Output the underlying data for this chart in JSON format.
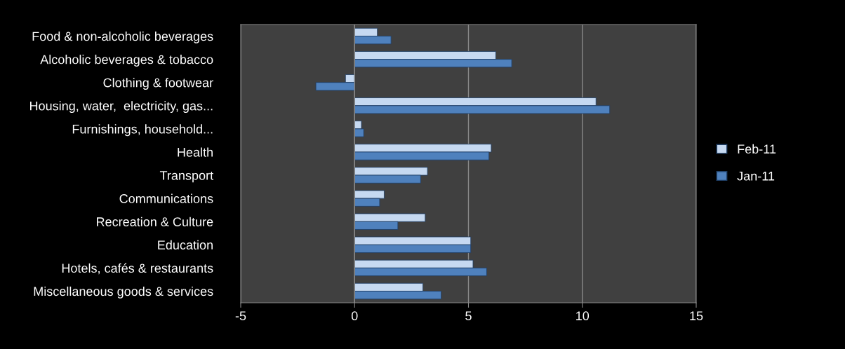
{
  "chart_data": {
    "type": "bar",
    "orientation": "horizontal",
    "categories": [
      "Food & non-alcoholic beverages",
      "Alcoholic beverages & tobacco",
      "Clothing & footwear",
      "Housing, water,  electricity, gas...",
      "Furnishings, household...",
      "Health",
      "Transport",
      "Communications",
      "Recreation & Culture",
      "Education",
      "Hotels, cafés & restaurants",
      "Miscellaneous goods & services"
    ],
    "series": [
      {
        "name": "Feb-11",
        "color": "#c6d9f1",
        "values": [
          1.0,
          6.2,
          -0.4,
          10.6,
          0.3,
          6.0,
          3.2,
          1.3,
          3.1,
          5.1,
          5.2,
          3.0
        ]
      },
      {
        "name": "Jan-11",
        "color": "#4f81bd",
        "values": [
          1.6,
          6.9,
          -1.7,
          11.2,
          0.4,
          5.9,
          2.9,
          1.1,
          1.9,
          5.1,
          5.8,
          3.8
        ]
      }
    ],
    "xlim": [
      -5,
      15
    ],
    "xticks": [
      -5,
      0,
      5,
      10,
      15
    ],
    "grid": "x",
    "legend": "right"
  }
}
